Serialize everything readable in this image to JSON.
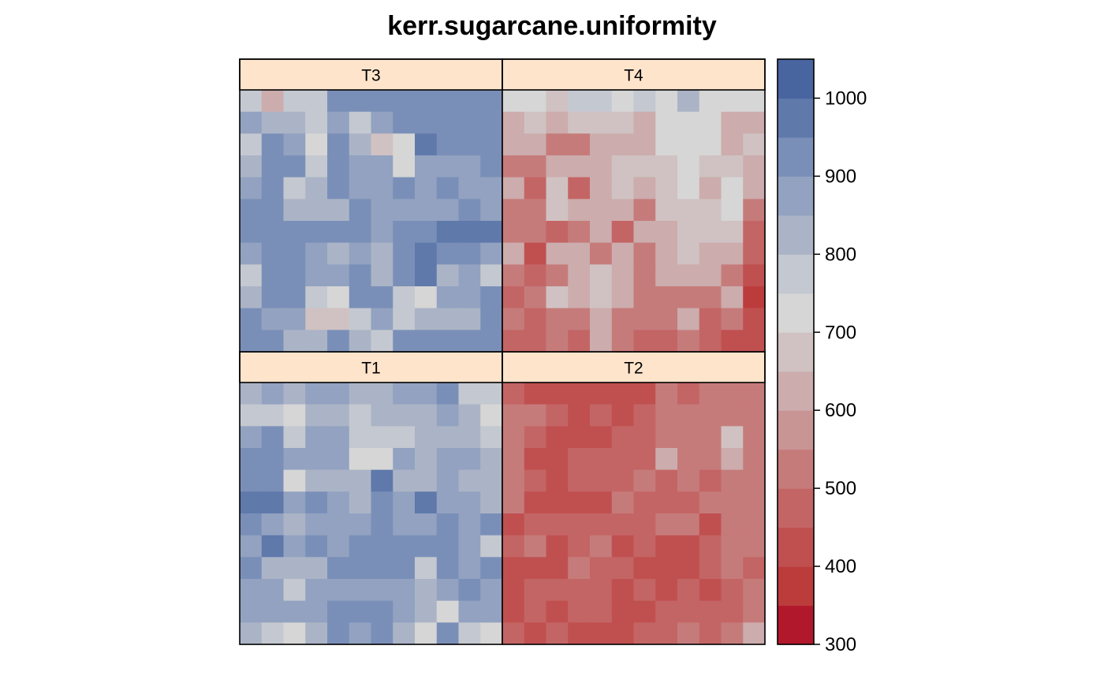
{
  "chart_data": {
    "type": "heatmap",
    "title": "kerr.sugarcane.uniformity",
    "panels": [
      {
        "name": "T1",
        "rows": [
          [
            810,
            870,
            820,
            860,
            860,
            820,
            820,
            860,
            860,
            920,
            760,
            760
          ],
          [
            760,
            760,
            700,
            820,
            820,
            760,
            820,
            820,
            820,
            860,
            820,
            700
          ],
          [
            860,
            920,
            760,
            860,
            860,
            760,
            760,
            760,
            820,
            820,
            820,
            760
          ],
          [
            940,
            920,
            860,
            860,
            860,
            700,
            700,
            860,
            820,
            860,
            860,
            820
          ],
          [
            940,
            920,
            700,
            820,
            820,
            820,
            960,
            820,
            820,
            860,
            820,
            820
          ],
          [
            960,
            960,
            860,
            900,
            860,
            820,
            900,
            860,
            960,
            860,
            860,
            820
          ],
          [
            900,
            860,
            820,
            860,
            860,
            860,
            940,
            860,
            860,
            900,
            860,
            900
          ],
          [
            860,
            960,
            860,
            900,
            860,
            900,
            900,
            900,
            940,
            940,
            860,
            760
          ],
          [
            900,
            820,
            820,
            820,
            900,
            900,
            940,
            900,
            760,
            900,
            860,
            900
          ],
          [
            860,
            860,
            760,
            860,
            860,
            860,
            860,
            860,
            820,
            860,
            940,
            860
          ],
          [
            860,
            860,
            860,
            860,
            900,
            900,
            940,
            860,
            820,
            720,
            860,
            860
          ],
          [
            820,
            760,
            720,
            820,
            900,
            860,
            940,
            820,
            720,
            900,
            760,
            720
          ]
        ]
      },
      {
        "name": "T2",
        "rows": [
          [
            480,
            440,
            440,
            440,
            440,
            440,
            440,
            540,
            480,
            540,
            540,
            540
          ],
          [
            540,
            540,
            480,
            400,
            480,
            440,
            480,
            540,
            540,
            540,
            540,
            540
          ],
          [
            540,
            480,
            440,
            440,
            440,
            480,
            480,
            540,
            540,
            540,
            660,
            540
          ],
          [
            540,
            440,
            440,
            480,
            480,
            480,
            480,
            600,
            540,
            540,
            600,
            540
          ],
          [
            540,
            480,
            440,
            480,
            480,
            480,
            540,
            480,
            540,
            480,
            540,
            540
          ],
          [
            540,
            440,
            440,
            440,
            440,
            540,
            480,
            480,
            480,
            540,
            540,
            540
          ],
          [
            440,
            480,
            480,
            480,
            480,
            480,
            480,
            540,
            540,
            440,
            540,
            540
          ],
          [
            480,
            540,
            440,
            480,
            540,
            440,
            480,
            440,
            440,
            480,
            540,
            540
          ],
          [
            400,
            440,
            440,
            540,
            480,
            480,
            440,
            440,
            440,
            480,
            540,
            480
          ],
          [
            400,
            480,
            480,
            480,
            480,
            440,
            480,
            440,
            480,
            440,
            480,
            540
          ],
          [
            440,
            480,
            440,
            480,
            480,
            440,
            440,
            480,
            480,
            480,
            480,
            540
          ],
          [
            480,
            440,
            480,
            440,
            440,
            440,
            480,
            480,
            540,
            480,
            540,
            600
          ]
        ]
      },
      {
        "name": "T3",
        "rows": [
          [
            790,
            620,
            760,
            760,
            900,
            940,
            900,
            900,
            940,
            900,
            900,
            900
          ],
          [
            860,
            820,
            820,
            760,
            860,
            760,
            860,
            900,
            900,
            900,
            900,
            940
          ],
          [
            760,
            900,
            860,
            720,
            940,
            820,
            660,
            720,
            980,
            900,
            900,
            900
          ],
          [
            820,
            900,
            900,
            760,
            940,
            860,
            860,
            720,
            860,
            860,
            860,
            940
          ],
          [
            860,
            900,
            760,
            820,
            900,
            860,
            860,
            900,
            860,
            900,
            860,
            860
          ],
          [
            940,
            900,
            820,
            820,
            820,
            940,
            860,
            860,
            860,
            860,
            900,
            860
          ],
          [
            940,
            940,
            940,
            900,
            900,
            940,
            860,
            900,
            900,
            980,
            980,
            980
          ],
          [
            860,
            940,
            900,
            860,
            820,
            860,
            820,
            900,
            980,
            940,
            900,
            860
          ],
          [
            760,
            900,
            900,
            860,
            860,
            900,
            820,
            900,
            980,
            820,
            860,
            760
          ],
          [
            820,
            900,
            940,
            760,
            720,
            900,
            900,
            760,
            720,
            860,
            860,
            940
          ],
          [
            940,
            860,
            860,
            660,
            660,
            760,
            860,
            760,
            820,
            820,
            820,
            900
          ],
          [
            900,
            940,
            820,
            820,
            940,
            820,
            760,
            900,
            900,
            900,
            900,
            900
          ]
        ]
      },
      {
        "name": "T4",
        "rows": [
          [
            700,
            700,
            660,
            760,
            760,
            720,
            760,
            720,
            820,
            720,
            720,
            720
          ],
          [
            600,
            660,
            600,
            660,
            660,
            660,
            600,
            720,
            720,
            720,
            600,
            600
          ],
          [
            600,
            600,
            540,
            540,
            600,
            600,
            600,
            720,
            720,
            720,
            600,
            660
          ],
          [
            540,
            540,
            600,
            600,
            600,
            660,
            660,
            660,
            720,
            660,
            660,
            600
          ],
          [
            600,
            480,
            660,
            480,
            600,
            660,
            600,
            660,
            720,
            600,
            720,
            600
          ],
          [
            540,
            540,
            660,
            600,
            600,
            600,
            540,
            660,
            660,
            660,
            720,
            540
          ],
          [
            540,
            540,
            480,
            540,
            600,
            480,
            600,
            600,
            660,
            660,
            660,
            480
          ],
          [
            600,
            440,
            600,
            600,
            540,
            600,
            540,
            600,
            660,
            600,
            600,
            480
          ],
          [
            540,
            480,
            540,
            600,
            660,
            600,
            540,
            600,
            600,
            600,
            540,
            440
          ],
          [
            480,
            540,
            660,
            600,
            660,
            600,
            540,
            540,
            540,
            540,
            600,
            380
          ],
          [
            540,
            480,
            540,
            540,
            600,
            540,
            540,
            540,
            600,
            480,
            540,
            440
          ],
          [
            480,
            480,
            540,
            480,
            600,
            540,
            480,
            480,
            540,
            480,
            440,
            440
          ]
        ]
      }
    ],
    "colorbar": {
      "range": [
        300,
        1050
      ],
      "breaks": [
        300,
        350,
        400,
        450,
        500,
        550,
        600,
        650,
        700,
        750,
        800,
        850,
        900,
        950,
        1000,
        1050
      ],
      "colors": [
        "#B2182B",
        "#BC3C3C",
        "#C05050",
        "#C46565",
        "#C67B7B",
        "#C99494",
        "#CCACAC",
        "#D0C2C2",
        "#D6D6D6",
        "#C4C8D0",
        "#ABB4C6",
        "#92A2C0",
        "#7A8FB8",
        "#5F79AB",
        "#4865A0"
      ],
      "ticks": [
        300,
        400,
        500,
        600,
        700,
        800,
        900,
        1000
      ]
    },
    "legend_position": "right",
    "grid": false
  },
  "colors": {
    "strip_background": "#FFE4CC",
    "border": "#000000"
  }
}
